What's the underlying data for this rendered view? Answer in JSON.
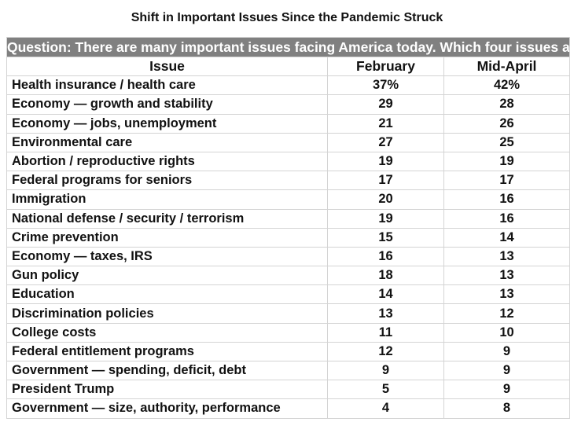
{
  "chart_data": {
    "type": "table",
    "title": "Shift in Important Issues Since the Pandemic Struck",
    "question": "Question: There are many important issues facing America today. Which four issues among those listed below are the ones most important to you, personally?",
    "columns": [
      "Issue",
      "February",
      "Mid-April"
    ],
    "rows": [
      {
        "issue": "Health insurance / health care",
        "february": "37%",
        "mid_april": "42%"
      },
      {
        "issue": "Economy — growth and stability",
        "february": "29",
        "mid_april": "28"
      },
      {
        "issue": "Economy — jobs, unemployment",
        "february": "21",
        "mid_april": "26"
      },
      {
        "issue": "Environmental care",
        "february": "27",
        "mid_april": "25"
      },
      {
        "issue": "Abortion / reproductive rights",
        "february": "19",
        "mid_april": "19"
      },
      {
        "issue": "Federal programs for seniors",
        "february": "17",
        "mid_april": "17"
      },
      {
        "issue": "Immigration",
        "february": "20",
        "mid_april": "16"
      },
      {
        "issue": "National defense / security / terrorism",
        "february": "19",
        "mid_april": "16"
      },
      {
        "issue": "Crime prevention",
        "february": "15",
        "mid_april": "14"
      },
      {
        "issue": "Economy — taxes, IRS",
        "february": "16",
        "mid_april": "13"
      },
      {
        "issue": "Gun policy",
        "february": "18",
        "mid_april": "13"
      },
      {
        "issue": "Education",
        "february": "14",
        "mid_april": "13"
      },
      {
        "issue": "Discrimination policies",
        "february": "13",
        "mid_april": "12"
      },
      {
        "issue": "College costs",
        "february": "11",
        "mid_april": "10"
      },
      {
        "issue": "Federal entitlement programs",
        "february": "12",
        "mid_april": "9"
      },
      {
        "issue": "Government — spending, deficit, debt",
        "february": "9",
        "mid_april": "9"
      },
      {
        "issue": "President Trump",
        "february": "5",
        "mid_april": "9"
      },
      {
        "issue": "Government — size, authority, performance",
        "february": "4",
        "mid_april": "8"
      }
    ]
  },
  "colors": {
    "question_background": "#808080",
    "question_text": "#ffffff",
    "grid_lines": "#d4d4d4"
  }
}
